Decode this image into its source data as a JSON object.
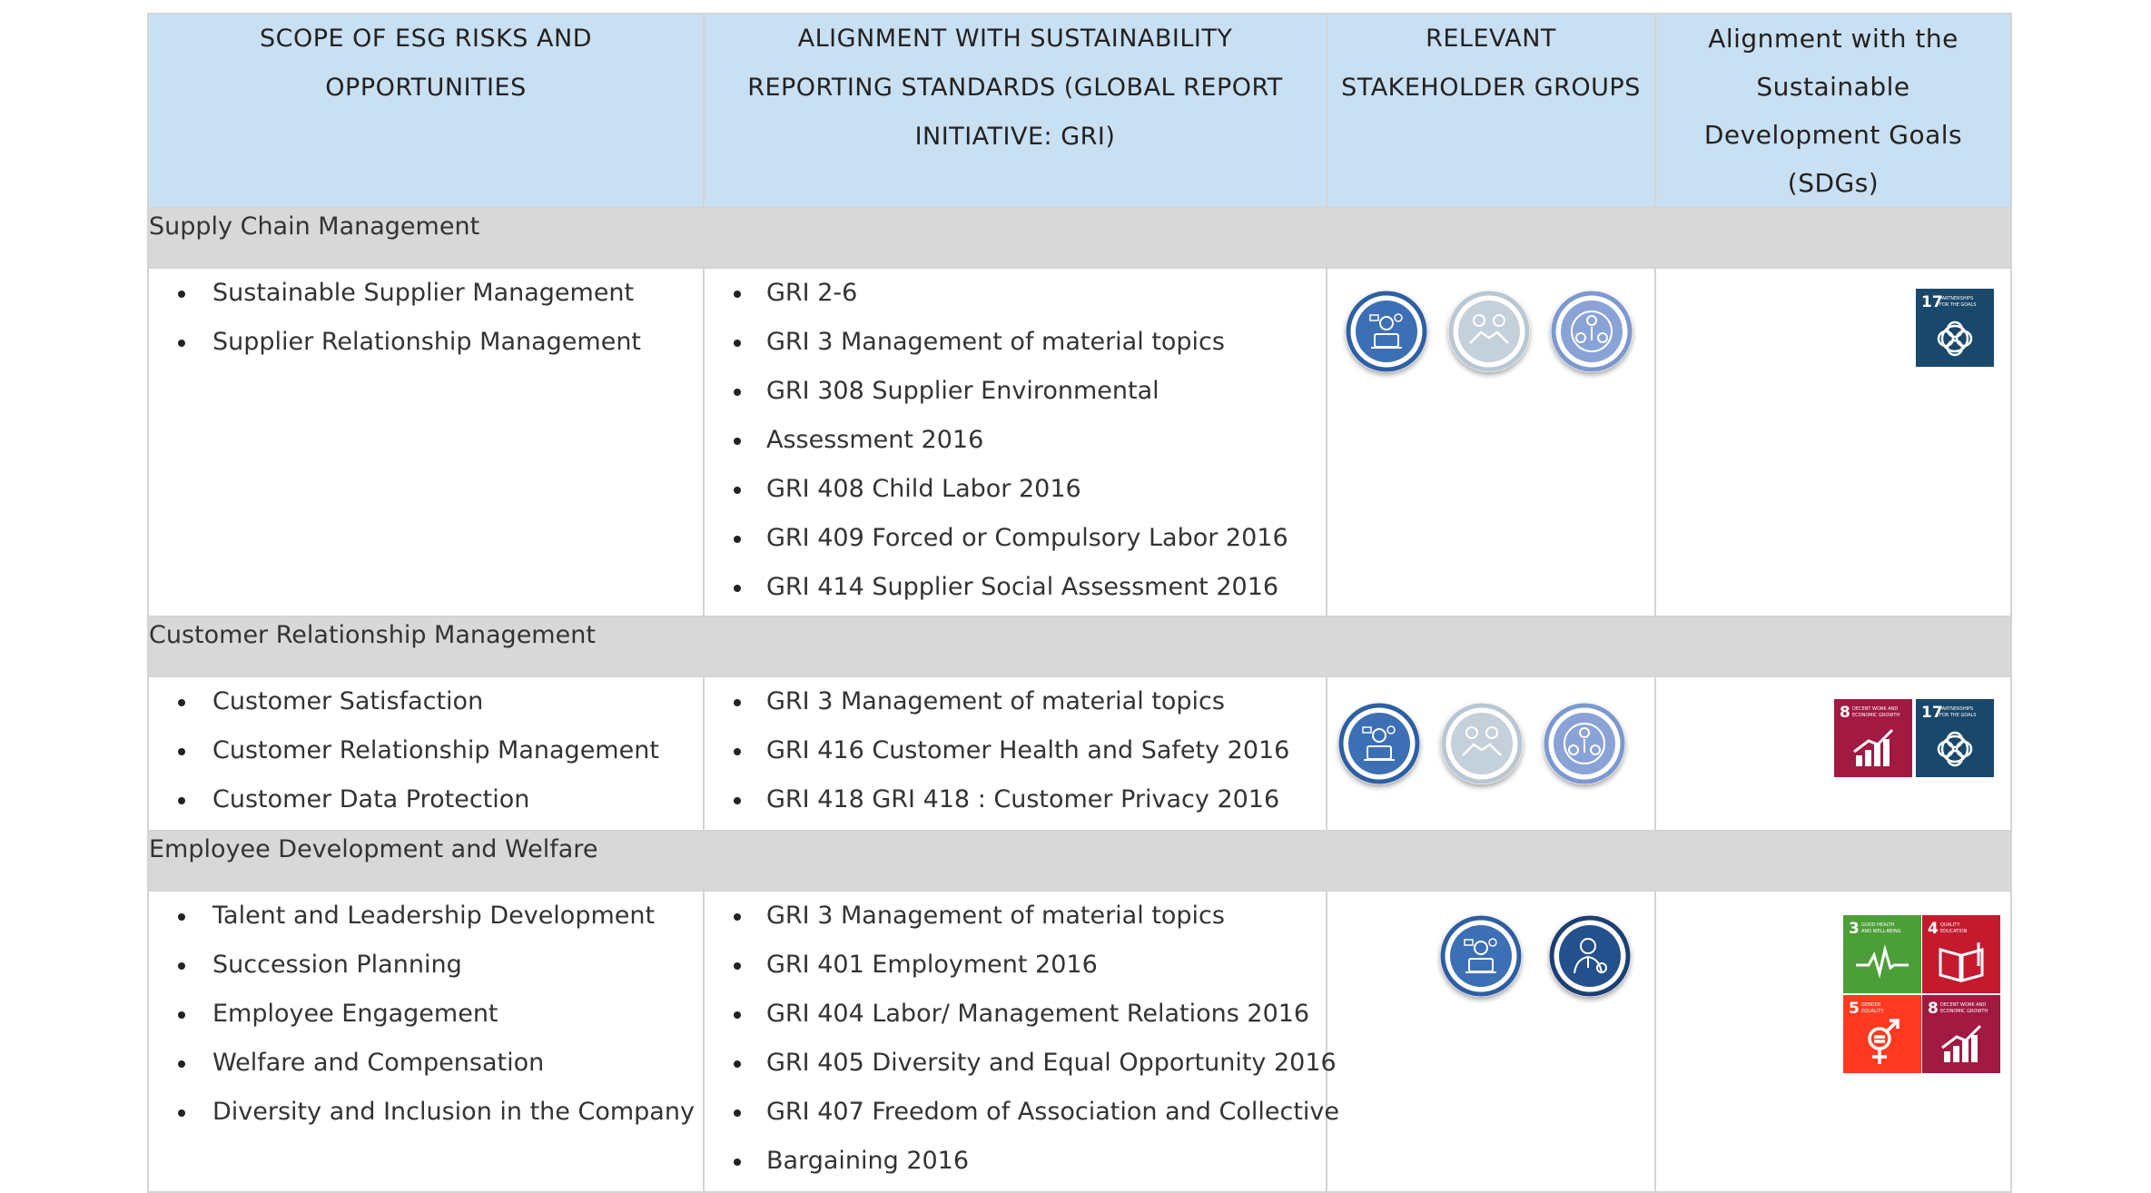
{
  "header": {
    "col_scope": "SCOPE OF ESG RISKS AND OPPORTUNITIES",
    "col_gri": "ALIGNMENT WITH SUSTAINABILITY REPORTING STANDARDS (GLOBAL REPORT INITIATIVE: GRI)",
    "col_stakeholders": "RELEVANT STAKEHOLDER GROUPS",
    "col_sdgs": "Alignment with the Sustainable Development Goals (SDGs)"
  },
  "sections": [
    {
      "title": "Supply Chain Management",
      "scope": [
        "Sustainable Supplier Management",
        "Supplier Relationship Management"
      ],
      "gri": [
        "GRI 2-6",
        "GRI 3 Management of material topics",
        "GRI 308 Supplier Environmental",
        "Assessment 2016",
        "GRI 408 Child Labor 2016",
        "GRI 409 Forced or Compulsory Labor 2016",
        "GRI 414 Supplier Social Assessment 2016"
      ],
      "stakeholder_icons": [
        "employee-laptop-icon",
        "handshake-partner-icon",
        "community-tree-icon"
      ],
      "sdgs": [
        {
          "number": "17",
          "label": "PARTNERSHIPS FOR THE GOALS",
          "color": "#19486a",
          "icon": "partnership-rings-icon"
        }
      ]
    },
    {
      "title": "Customer Relationship Management",
      "scope": [
        "Customer Satisfaction",
        "Customer Relationship Management",
        "Customer Data Protection"
      ],
      "gri": [
        "GRI 3 Management of material topics",
        "GRI 416 Customer Health and Safety 2016",
        "GRI 418 GRI 418 : Customer Privacy 2016"
      ],
      "stakeholder_icons": [
        "employee-laptop-icon",
        "handshake-partner-icon",
        "community-tree-icon"
      ],
      "sdgs": [
        {
          "number": "8",
          "label": "DECENT WORK AND ECONOMIC GROWTH",
          "color": "#a21942",
          "icon": "growth-chart-icon"
        },
        {
          "number": "17",
          "label": "PARTNERSHIPS FOR THE GOALS",
          "color": "#19486a",
          "icon": "partnership-rings-icon"
        }
      ]
    },
    {
      "title": "Employee Development and Welfare",
      "scope": [
        "Talent and Leadership Development",
        "Succession Planning",
        "Employee Engagement",
        "Welfare and Compensation",
        "Diversity and Inclusion in the Company"
      ],
      "gri": [
        "GRI 3 Management of material topics",
        "GRI 401 Employment 2016",
        "GRI 404 Labor/ Management Relations 2016",
        "GRI 405 Diversity and Equal Opportunity 2016",
        "GRI 407 Freedom of Association and Collective",
        "Bargaining 2016"
      ],
      "stakeholder_icons": [
        "employee-laptop-icon",
        "executive-badge-icon"
      ],
      "sdgs": [
        {
          "number": "3",
          "label": "GOOD HEALTH AND WELL-BEING",
          "color": "#4c9f38",
          "icon": "heartbeat-icon"
        },
        {
          "number": "4",
          "label": "QUALITY EDUCATION",
          "color": "#c5192d",
          "icon": "book-icon"
        },
        {
          "number": "5",
          "label": "GENDER EQUALITY",
          "color": "#ff3a21",
          "icon": "gender-symbol-icon"
        },
        {
          "number": "8",
          "label": "DECENT WORK AND ECONOMIC GROWTH",
          "color": "#a21942",
          "icon": "growth-chart-icon"
        }
      ]
    }
  ]
}
